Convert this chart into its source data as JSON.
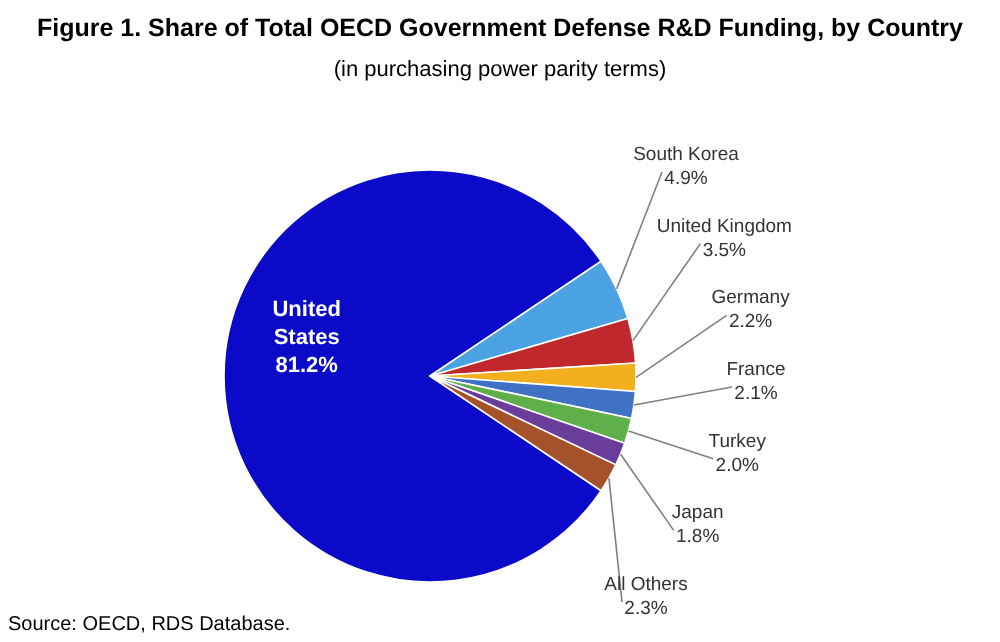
{
  "chart_data": {
    "type": "pie",
    "title": "Figure 1. Share of Total OECD Government Defense R&D Funding, by Country",
    "subtitle": "(in purchasing power parity terms)",
    "categories": [
      "United States",
      "South Korea",
      "United Kingdom",
      "Germany",
      "France",
      "Turkey",
      "Japan",
      "All Others"
    ],
    "values": [
      81.2,
      4.9,
      3.5,
      2.2,
      2.1,
      2.0,
      1.8,
      2.3
    ],
    "value_labels": [
      "81.2%",
      "4.9%",
      "3.5%",
      "2.2%",
      "2.1%",
      "2.0%",
      "1.8%",
      "2.3%"
    ],
    "colors": [
      "#0a0ac8",
      "#4ba3e3",
      "#c0282d",
      "#f2b01e",
      "#3f72c4",
      "#5fb04a",
      "#6a3d9a",
      "#a5522b"
    ],
    "annotations": [
      "Source: OECD, RDS Database."
    ]
  }
}
